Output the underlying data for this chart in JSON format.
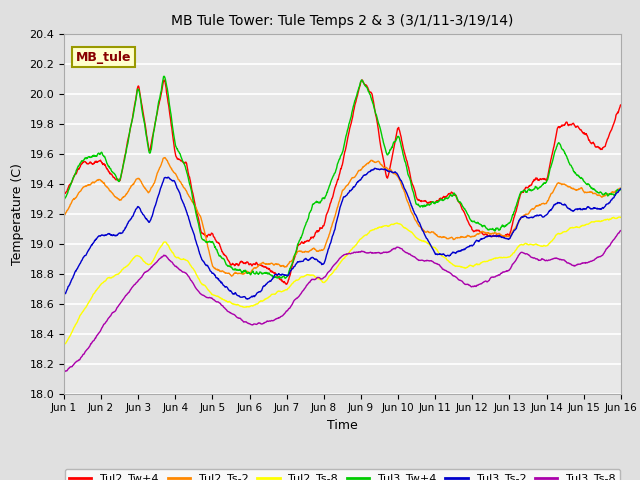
{
  "title": "MB Tule Tower: Tule Temps 2 & 3 (3/1/11-3/19/14)",
  "xlabel": "Time",
  "ylabel": "Temperature (C)",
  "ylim": [
    18.0,
    20.4
  ],
  "yticks": [
    18.0,
    18.2,
    18.4,
    18.6,
    18.8,
    19.0,
    19.2,
    19.4,
    19.6,
    19.8,
    20.0,
    20.2,
    20.4
  ],
  "xtick_labels": [
    "Jun 1",
    "Jun 2",
    "Jun 3",
    "Jun 4",
    "Jun 5",
    "Jun 6",
    "Jun 7",
    "Jun 8",
    "Jun 9",
    "Jun 10",
    "Jun 11",
    "Jun 12",
    "Jun 13",
    "Jun 14",
    "Jun 15",
    "Jun 16"
  ],
  "background_color": "#e0e0e0",
  "plot_bg_color": "#e8e8e8",
  "grid_color": "#ffffff",
  "legend_box_color": "#ffffcc",
  "legend_box_label": "MB_tule",
  "legend_box_text_color": "#880000",
  "series_colors": {
    "Tul2_Tw+4": "#ff0000",
    "Tul2_Ts-2": "#ff8800",
    "Tul2_Ts-8": "#ffff00",
    "Tul3_Tw+4": "#00cc00",
    "Tul3_Ts-2": "#0000cc",
    "Tul3_Ts-8": "#aa00aa"
  }
}
